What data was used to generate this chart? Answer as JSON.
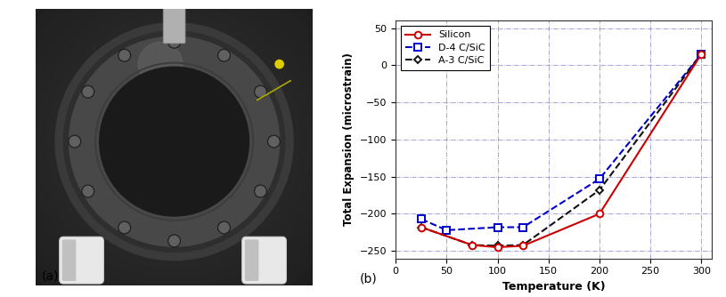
{
  "title_a": "(a)",
  "title_b": "(b)",
  "xlabel": "Temperature (K)",
  "ylabel": "Total Expansion (microstrain)",
  "xlim": [
    0,
    310
  ],
  "ylim": [
    -260,
    60
  ],
  "yticks": [
    -250,
    -200,
    -150,
    -100,
    -50,
    0,
    50
  ],
  "xticks": [
    0,
    50,
    100,
    150,
    200,
    250,
    300
  ],
  "silicon_x": [
    25,
    75,
    100,
    125,
    200,
    300
  ],
  "silicon_y": [
    -218,
    -242,
    -245,
    -243,
    -200,
    15
  ],
  "d4_x": [
    25,
    50,
    100,
    125,
    200,
    300
  ],
  "d4_y": [
    -207,
    -222,
    -218,
    -218,
    -153,
    15
  ],
  "a3_x": [
    25,
    75,
    100,
    125,
    200,
    300
  ],
  "a3_y": [
    -218,
    -242,
    -243,
    -242,
    -168,
    15
  ],
  "silicon_color": "#cc0000",
  "d4_color": "#0000cc",
  "a3_color": "#111111",
  "grid_color": "#8888cc",
  "background_color": "#ffffff",
  "legend_labels": [
    "Silicon",
    "D-4 C/SiC",
    "A-3 C/SiC"
  ],
  "photo_bg": "#1c1c1c",
  "photo_ring_outer": "#4a4a4a",
  "photo_ring_inner": "#2a2a2a",
  "photo_bolt": "#606060"
}
